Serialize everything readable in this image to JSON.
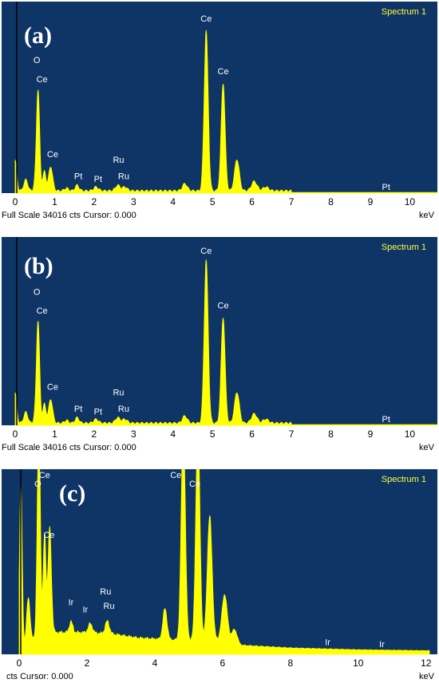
{
  "chart_data": [
    {
      "type": "area",
      "panel_label": "(a)",
      "spectrum_name": "Spectrum 1",
      "footer": "Full Scale 34016 cts Cursor: 0.000",
      "xlabel": "keV",
      "xlim": [
        0,
        10.7
      ],
      "ylim": [
        0,
        34016
      ],
      "x_ticks": [
        "0",
        "1",
        "2",
        "3",
        "4",
        "5",
        "6",
        "7",
        "8",
        "9",
        "10"
      ],
      "peaks": [
        {
          "x": 0.0,
          "y": 5500,
          "w": 0.04
        },
        {
          "x": 0.27,
          "y": 2000,
          "w": 0.05
        },
        {
          "x": 0.52,
          "y": 1200,
          "w": 0.04
        },
        {
          "x": 0.58,
          "y": 18000,
          "w": 0.04
        },
        {
          "x": 0.74,
          "y": 3500,
          "w": 0.04
        },
        {
          "x": 0.9,
          "y": 4400,
          "w": 0.05
        },
        {
          "x": 1.3,
          "y": 500,
          "w": 0.05
        },
        {
          "x": 1.57,
          "y": 1000,
          "w": 0.05
        },
        {
          "x": 2.05,
          "y": 700,
          "w": 0.06
        },
        {
          "x": 2.6,
          "y": 1000,
          "w": 0.06
        },
        {
          "x": 2.78,
          "y": 700,
          "w": 0.06
        },
        {
          "x": 4.3,
          "y": 1300,
          "w": 0.06
        },
        {
          "x": 4.84,
          "y": 29000,
          "w": 0.05
        },
        {
          "x": 5.27,
          "y": 19500,
          "w": 0.05
        },
        {
          "x": 5.62,
          "y": 5700,
          "w": 0.06
        },
        {
          "x": 6.06,
          "y": 1700,
          "w": 0.07
        },
        {
          "x": 6.35,
          "y": 700,
          "w": 0.07
        }
      ],
      "labels": [
        {
          "text": "O",
          "x": 0.55,
          "y": 23500
        },
        {
          "text": "Ce",
          "x": 0.68,
          "y": 20000
        },
        {
          "text": "Ce",
          "x": 0.95,
          "y": 6500
        },
        {
          "text": "Pt",
          "x": 1.6,
          "y": 2500
        },
        {
          "text": "Pt",
          "x": 2.1,
          "y": 2000
        },
        {
          "text": "Ru",
          "x": 2.62,
          "y": 5500
        },
        {
          "text": "Ru",
          "x": 2.75,
          "y": 2500
        },
        {
          "text": "Ce",
          "x": 4.84,
          "y": 31000
        },
        {
          "text": "Ce",
          "x": 5.27,
          "y": 21500
        },
        {
          "text": "Pt",
          "x": 9.4,
          "y": 600
        }
      ]
    },
    {
      "type": "area",
      "panel_label": "(b)",
      "spectrum_name": "Spectrum 1",
      "footer": "Full Scale 34016 cts Cursor: 0.000",
      "xlabel": "keV",
      "xlim": [
        0,
        10.7
      ],
      "ylim": [
        0,
        34016
      ],
      "x_ticks": [
        "0",
        "1",
        "2",
        "3",
        "4",
        "5",
        "6",
        "7",
        "8",
        "9",
        "10"
      ],
      "peaks": [
        {
          "x": 0.0,
          "y": 5500,
          "w": 0.04
        },
        {
          "x": 0.27,
          "y": 2000,
          "w": 0.05
        },
        {
          "x": 0.52,
          "y": 1200,
          "w": 0.04
        },
        {
          "x": 0.58,
          "y": 18500,
          "w": 0.04
        },
        {
          "x": 0.74,
          "y": 3500,
          "w": 0.04
        },
        {
          "x": 0.9,
          "y": 4400,
          "w": 0.05
        },
        {
          "x": 1.3,
          "y": 500,
          "w": 0.05
        },
        {
          "x": 1.57,
          "y": 1000,
          "w": 0.05
        },
        {
          "x": 2.05,
          "y": 700,
          "w": 0.06
        },
        {
          "x": 2.6,
          "y": 1000,
          "w": 0.06
        },
        {
          "x": 2.78,
          "y": 700,
          "w": 0.06
        },
        {
          "x": 4.3,
          "y": 1300,
          "w": 0.06
        },
        {
          "x": 4.84,
          "y": 30000,
          "w": 0.05
        },
        {
          "x": 5.27,
          "y": 19500,
          "w": 0.05
        },
        {
          "x": 5.62,
          "y": 5700,
          "w": 0.06
        },
        {
          "x": 6.06,
          "y": 1700,
          "w": 0.07
        },
        {
          "x": 6.35,
          "y": 700,
          "w": 0.07
        }
      ],
      "labels": [
        {
          "text": "O",
          "x": 0.55,
          "y": 24000
        },
        {
          "text": "Ce",
          "x": 0.68,
          "y": 20500
        },
        {
          "text": "Ce",
          "x": 0.95,
          "y": 6500
        },
        {
          "text": "Pt",
          "x": 1.6,
          "y": 2500
        },
        {
          "text": "Pt",
          "x": 2.1,
          "y": 2000
        },
        {
          "text": "Ru",
          "x": 2.62,
          "y": 5500
        },
        {
          "text": "Ru",
          "x": 2.75,
          "y": 2500
        },
        {
          "text": "Ce",
          "x": 4.84,
          "y": 31500
        },
        {
          "text": "Ce",
          "x": 5.27,
          "y": 21500
        },
        {
          "text": "Pt",
          "x": 9.4,
          "y": 600
        }
      ]
    },
    {
      "type": "area",
      "panel_label": "(c)",
      "spectrum_name": "Spectrum 1",
      "footer": "cts Cursor: 0.000",
      "xlabel": "keV",
      "xlim": [
        0,
        12.1
      ],
      "ylim": [
        0,
        100
      ],
      "x_ticks": [
        "0",
        "2",
        "4",
        "6",
        "8",
        "10",
        "12"
      ],
      "baseline": [
        [
          0.0,
          2
        ],
        [
          0.5,
          10
        ],
        [
          1.0,
          12
        ],
        [
          2.0,
          12
        ],
        [
          2.8,
          11
        ],
        [
          3.5,
          9
        ],
        [
          4.5,
          8
        ],
        [
          5.8,
          8
        ],
        [
          6.5,
          5
        ],
        [
          8.0,
          3.5
        ],
        [
          10.0,
          2.5
        ],
        [
          12.0,
          2
        ]
      ],
      "peaks": [
        {
          "x": 0.05,
          "y": 90,
          "w": 0.04
        },
        {
          "x": 0.27,
          "y": 25,
          "w": 0.05
        },
        {
          "x": 0.58,
          "y": 120,
          "w": 0.045
        },
        {
          "x": 0.75,
          "y": 55,
          "w": 0.04
        },
        {
          "x": 0.9,
          "y": 58,
          "w": 0.05
        },
        {
          "x": 1.53,
          "y": 6,
          "w": 0.05
        },
        {
          "x": 2.1,
          "y": 5,
          "w": 0.06
        },
        {
          "x": 2.6,
          "y": 7,
          "w": 0.06
        },
        {
          "x": 4.3,
          "y": 17,
          "w": 0.06
        },
        {
          "x": 4.84,
          "y": 120,
          "w": 0.06
        },
        {
          "x": 5.27,
          "y": 120,
          "w": 0.06
        },
        {
          "x": 5.62,
          "y": 68,
          "w": 0.07
        },
        {
          "x": 6.06,
          "y": 26,
          "w": 0.08
        },
        {
          "x": 6.35,
          "y": 8,
          "w": 0.08
        }
      ],
      "labels": [
        {
          "text": "Ce",
          "x": 0.75,
          "y": 97
        },
        {
          "text": "O",
          "x": 0.55,
          "y": 92
        },
        {
          "text": "Ce",
          "x": 0.88,
          "y": 64
        },
        {
          "text": "Ir",
          "x": 1.53,
          "y": 27
        },
        {
          "text": "Ir",
          "x": 1.95,
          "y": 23
        },
        {
          "text": "Ru",
          "x": 2.55,
          "y": 33
        },
        {
          "text": "Ru",
          "x": 2.65,
          "y": 25
        },
        {
          "text": "Ce",
          "x": 4.62,
          "y": 97
        },
        {
          "text": "Ce",
          "x": 5.18,
          "y": 92
        },
        {
          "text": "Ir",
          "x": 9.1,
          "y": 5
        },
        {
          "text": "Ir",
          "x": 10.7,
          "y": 4
        }
      ]
    }
  ]
}
